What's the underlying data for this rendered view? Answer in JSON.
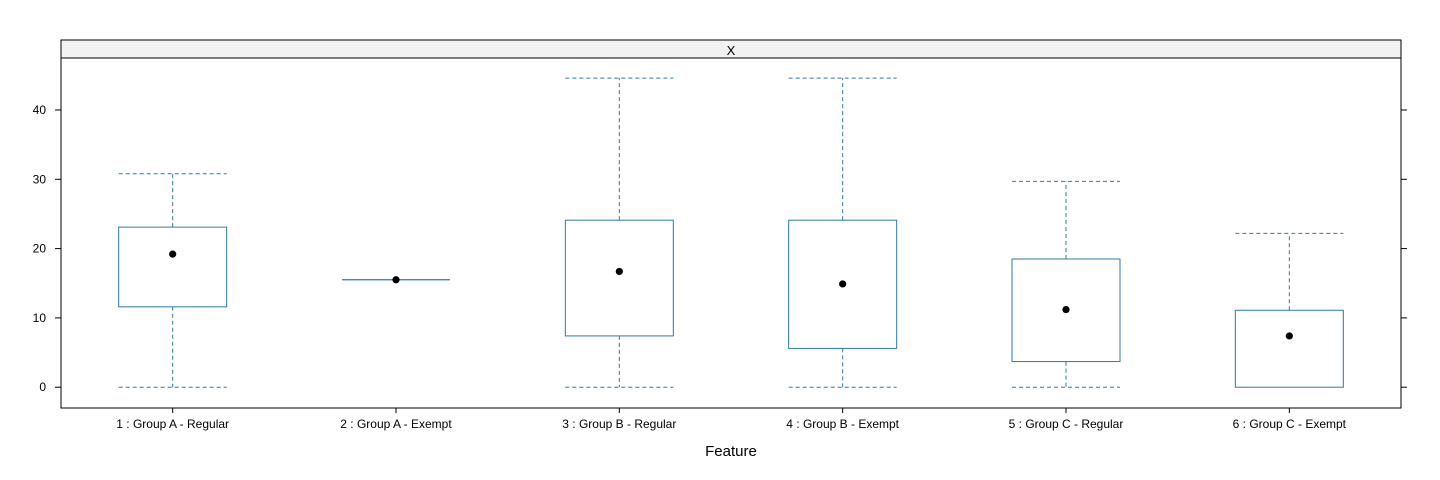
{
  "chart_data": {
    "type": "boxplot",
    "panel_label": "X",
    "xlabel": "Feature",
    "ylabel": "",
    "ylim": [
      -3,
      47.5
    ],
    "yticks": [
      0,
      10,
      20,
      30,
      40
    ],
    "categories": [
      "1 : Group A - Regular",
      "2 : Group A - Exempt",
      "3 : Group B - Regular",
      "4 : Group B - Exempt",
      "5 : Group C - Regular",
      "6 : Group C - Exempt"
    ],
    "boxes": [
      {
        "whisker_low": 0,
        "q1": 11.6,
        "median": 19.2,
        "q3": 23.1,
        "whisker_high": 30.8
      },
      {
        "whisker_low": 15.5,
        "q1": 15.5,
        "median": 15.5,
        "q3": 15.5,
        "whisker_high": 15.5
      },
      {
        "whisker_low": 0,
        "q1": 7.4,
        "median": 16.7,
        "q3": 24.1,
        "whisker_high": 44.6
      },
      {
        "whisker_low": 0,
        "q1": 5.6,
        "median": 14.9,
        "q3": 24.1,
        "whisker_high": 44.6
      },
      {
        "whisker_low": 0,
        "q1": 3.7,
        "median": 11.2,
        "q3": 18.5,
        "whisker_high": 29.7
      },
      {
        "whisker_low": 0,
        "q1": 0,
        "median": 7.4,
        "q3": 11.1,
        "whisker_high": 22.2
      }
    ],
    "grid": false,
    "colors": {
      "box": "#2E7AA6",
      "whisker": "#2E7AA6",
      "median_dot": "#000000",
      "strip_background": "#F2F2F2",
      "frame": "#000000"
    }
  }
}
